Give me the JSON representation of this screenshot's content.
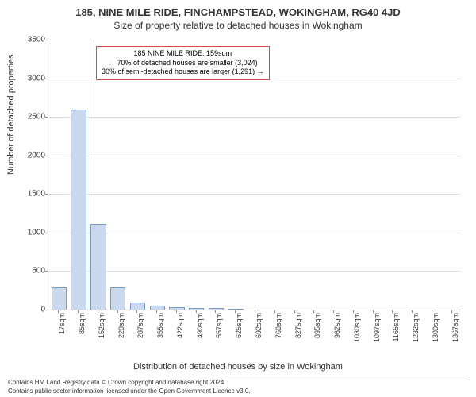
{
  "title_main": "185, NINE MILE RIDE, FINCHAMPSTEAD, WOKINGHAM, RG40 4JD",
  "title_sub": "Size of property relative to detached houses in Wokingham",
  "y_axis_label": "Number of detached properties",
  "x_axis_label": "Distribution of detached houses by size in Wokingham",
  "chart": {
    "ylim_max": 3500,
    "ytick_step": 500,
    "y_ticks": [
      0,
      500,
      1000,
      1500,
      2000,
      2500,
      3000,
      3500
    ],
    "x_ticks": [
      "17sqm",
      "85sqm",
      "152sqm",
      "220sqm",
      "287sqm",
      "355sqm",
      "422sqm",
      "490sqm",
      "557sqm",
      "625sqm",
      "692sqm",
      "760sqm",
      "827sqm",
      "895sqm",
      "962sqm",
      "1030sqm",
      "1097sqm",
      "1165sqm",
      "1232sqm",
      "1300sqm",
      "1367sqm"
    ],
    "bar_color": "#c9d8ec",
    "bar_border": "#7a9bc4",
    "grid_color": "#e0e0e0",
    "background": "#ffffff",
    "bars": [
      {
        "slot": 0,
        "value": 280
      },
      {
        "slot": 1,
        "value": 2580
      },
      {
        "slot": 2,
        "value": 1100
      },
      {
        "slot": 3,
        "value": 280
      },
      {
        "slot": 4,
        "value": 80
      },
      {
        "slot": 5,
        "value": 40
      },
      {
        "slot": 6,
        "value": 20
      },
      {
        "slot": 7,
        "value": 15
      },
      {
        "slot": 8,
        "value": 10
      },
      {
        "slot": 9,
        "value": 5
      }
    ],
    "marker_slot": 2.1,
    "marker_color": "#d94a4a"
  },
  "annotation": {
    "border_color": "#d94a4a",
    "line1": "185 NINE MILE RIDE: 159sqm",
    "line2": "← 70% of detached houses are smaller (3,024)",
    "line3": "30% of semi-detached houses are larger (1,291) →"
  },
  "footer_line1": "Contains HM Land Registry data © Crown copyright and database right 2024.",
  "footer_line2": "Contains public sector information licensed under the Open Government Licence v3.0."
}
